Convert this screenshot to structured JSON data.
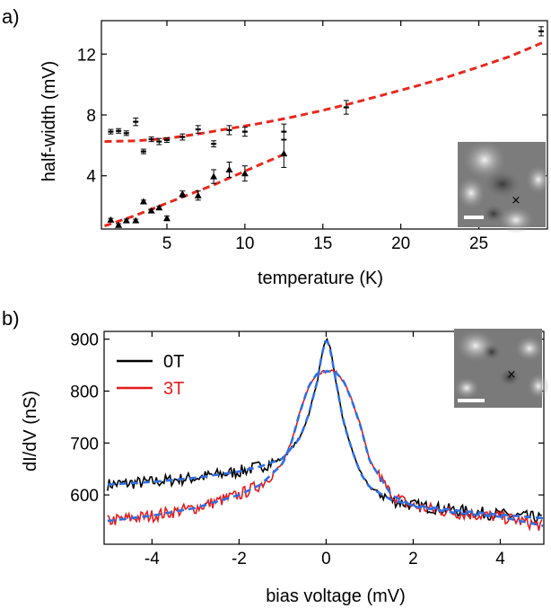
{
  "colors": {
    "black": "#000000",
    "red": "#e41a1c",
    "fit_red": "#e8281e",
    "fit_blue": "#2f6fe0"
  },
  "chart_data": [
    {
      "panel_label": "a)",
      "type": "scatter",
      "xlabel": "temperature (K)",
      "ylabel": "half-width (mV)",
      "xlim": [
        0.8,
        29.4
      ],
      "ylim": [
        0.5,
        14.2
      ],
      "xticks": [
        5,
        10,
        15,
        20,
        25
      ],
      "xtick_labels": [
        "5",
        "10",
        "15",
        "20",
        "25"
      ],
      "yticks": [
        4,
        8,
        12
      ],
      "ytick_labels": [
        "4",
        "8",
        "12"
      ],
      "series": [
        {
          "marker": "cross",
          "points": [
            {
              "x": 1.4,
              "y": 6.9,
              "err": 0.15
            },
            {
              "x": 1.9,
              "y": 6.95,
              "err": 0.15
            },
            {
              "x": 2.4,
              "y": 6.8,
              "err": 0.15
            },
            {
              "x": 3.0,
              "y": 7.55,
              "err": 0.25
            },
            {
              "x": 3.5,
              "y": 5.6,
              "err": 0.15
            },
            {
              "x": 4.0,
              "y": 6.4,
              "err": 0.15
            },
            {
              "x": 4.5,
              "y": 6.25,
              "err": 0.2
            },
            {
              "x": 5.0,
              "y": 6.35,
              "err": 0.15
            },
            {
              "x": 6.0,
              "y": 6.55,
              "err": 0.2
            },
            {
              "x": 7.0,
              "y": 7.05,
              "err": 0.25
            },
            {
              "x": 8.0,
              "y": 6.1,
              "err": 0.2
            },
            {
              "x": 9.0,
              "y": 7.0,
              "err": 0.3
            },
            {
              "x": 10.0,
              "y": 6.9,
              "err": 0.3
            },
            {
              "x": 12.5,
              "y": 6.9,
              "err": 0.5
            },
            {
              "x": 16.5,
              "y": 8.5,
              "err": 0.45
            },
            {
              "x": 29.0,
              "y": 13.5,
              "err": 0.3
            }
          ]
        },
        {
          "marker": "triangle",
          "points": [
            {
              "x": 1.4,
              "y": 1.1,
              "err": 0.1
            },
            {
              "x": 1.9,
              "y": 0.75,
              "err": 0.1
            },
            {
              "x": 2.4,
              "y": 1.05,
              "err": 0.1
            },
            {
              "x": 3.0,
              "y": 1.05,
              "err": 0.1
            },
            {
              "x": 3.5,
              "y": 2.3,
              "err": 0.1
            },
            {
              "x": 4.0,
              "y": 1.7,
              "err": 0.1
            },
            {
              "x": 4.5,
              "y": 1.9,
              "err": 0.1
            },
            {
              "x": 5.0,
              "y": 1.2,
              "err": 0.15
            },
            {
              "x": 6.0,
              "y": 2.8,
              "err": 0.2
            },
            {
              "x": 7.0,
              "y": 2.7,
              "err": 0.3
            },
            {
              "x": 8.0,
              "y": 3.95,
              "err": 0.45
            },
            {
              "x": 9.0,
              "y": 4.4,
              "err": 0.5
            },
            {
              "x": 10.0,
              "y": 4.15,
              "err": 0.5
            },
            {
              "x": 12.5,
              "y": 5.45,
              "err": 0.9
            }
          ]
        }
      ],
      "fits": [
        {
          "style": "dashed",
          "color": "#e8281e",
          "x": [
            1.0,
            3,
            5,
            7,
            9,
            11,
            13,
            15,
            17,
            19,
            21,
            23,
            25,
            27,
            29.2
          ],
          "y": [
            6.25,
            6.3,
            6.45,
            6.75,
            7.1,
            7.45,
            7.85,
            8.3,
            8.8,
            9.35,
            9.9,
            10.5,
            11.15,
            11.85,
            12.8
          ]
        },
        {
          "style": "dashed",
          "color": "#e8281e",
          "x": [
            1.0,
            2,
            3,
            4,
            5,
            6,
            7,
            8,
            9,
            10,
            11,
            12.5
          ],
          "y": [
            0.7,
            1.05,
            1.4,
            1.8,
            2.2,
            2.6,
            3.0,
            3.4,
            3.85,
            4.3,
            4.75,
            5.4
          ]
        }
      ],
      "inset": {
        "type": "topograph",
        "scale_bar": true,
        "marker": "×"
      }
    },
    {
      "panel_label": "b)",
      "type": "line",
      "xlabel": "bias voltage (mV)",
      "ylabel": "dI/dV (nS)",
      "xlim": [
        -5.1,
        5.0
      ],
      "ylim": [
        505,
        915
      ],
      "xticks": [
        -4,
        -2,
        0,
        2,
        4
      ],
      "xtick_labels": [
        "-4",
        "-2",
        "0",
        "2",
        "4"
      ],
      "yticks": [
        600,
        700,
        800,
        900
      ],
      "ytick_labels": [
        "600",
        "700",
        "800",
        "900"
      ],
      "legend": {
        "position": "top-left",
        "entries": [
          {
            "label": "0T",
            "color": "#000000"
          },
          {
            "label": "3T",
            "color": "#e41a1c"
          }
        ]
      },
      "series": [
        {
          "name": "0T",
          "color": "#000000",
          "x": [
            -5.0,
            -4.0,
            -3.0,
            -2.0,
            -1.5,
            -1.0,
            -0.6,
            -0.4,
            -0.2,
            -0.1,
            0.0,
            0.1,
            0.2,
            0.4,
            0.6,
            0.8,
            1.0,
            1.5,
            2.0,
            3.0,
            4.0,
            5.0
          ],
          "y": [
            620,
            625,
            633,
            645,
            655,
            670,
            710,
            755,
            820,
            870,
            902,
            880,
            830,
            740,
            685,
            640,
            615,
            590,
            580,
            570,
            562,
            555
          ],
          "noise": 12
        },
        {
          "name": "3T",
          "color": "#e41a1c",
          "x": [
            -5.0,
            -4.0,
            -3.0,
            -2.0,
            -1.5,
            -1.0,
            -0.8,
            -0.6,
            -0.4,
            -0.2,
            0.0,
            0.2,
            0.4,
            0.6,
            0.8,
            1.0,
            1.5,
            2.0,
            3.0,
            4.0,
            5.0
          ],
          "y": [
            550,
            560,
            575,
            600,
            620,
            660,
            700,
            760,
            810,
            835,
            838,
            838,
            820,
            780,
            730,
            665,
            600,
            578,
            565,
            558,
            540
          ],
          "noise": 12
        }
      ],
      "fits": [
        {
          "style": "dashed",
          "color": "#2f6fe0",
          "of": "0T"
        },
        {
          "style": "dashed",
          "color": "#2f6fe0",
          "of": "3T"
        }
      ],
      "inset": {
        "type": "topograph",
        "scale_bar": true,
        "marker": "×"
      }
    }
  ]
}
